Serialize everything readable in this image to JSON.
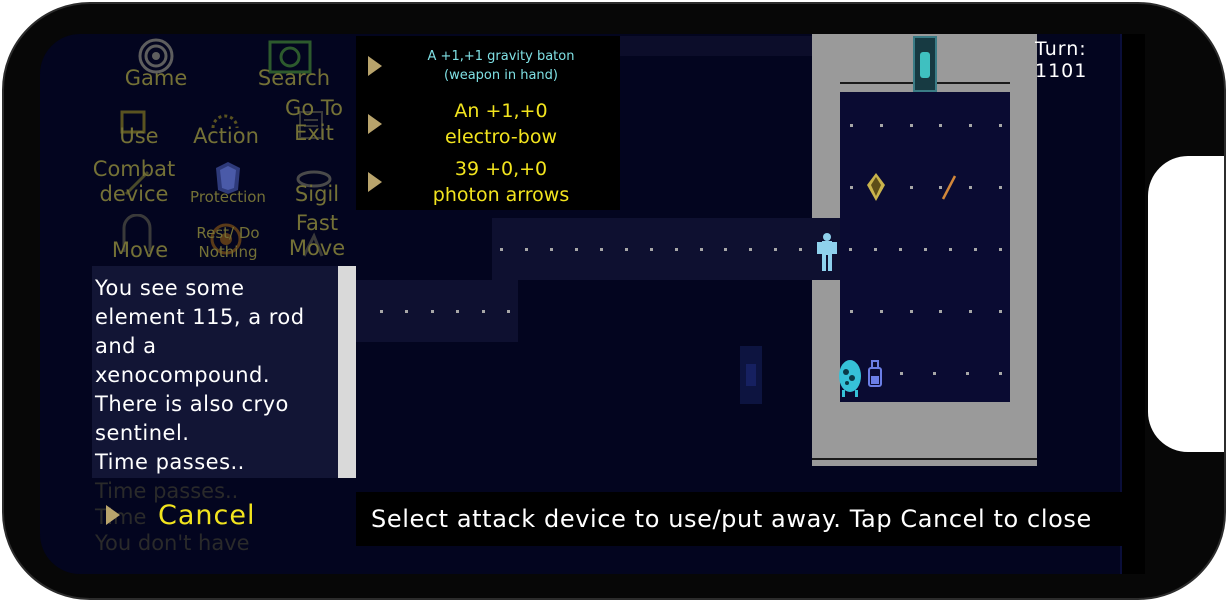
{
  "hud": {
    "turn": "Turn: 1101"
  },
  "commands": [
    {
      "id": "game",
      "label": "Game",
      "icon": "game-icon"
    },
    {
      "id": "search",
      "label": "Search",
      "icon": "search-icon"
    },
    {
      "id": "use",
      "label": "Use",
      "icon": "use-icon"
    },
    {
      "id": "action",
      "label": "Action",
      "icon": "action-icon"
    },
    {
      "id": "goto-exit",
      "label": "Go To\nExit",
      "icon": "exit-icon"
    },
    {
      "id": "combat-device",
      "label": "Combat\ndevice",
      "icon": "combat-icon"
    },
    {
      "id": "protection",
      "label": "Protection",
      "icon": "protection-icon"
    },
    {
      "id": "sigil",
      "label": "Sigil",
      "icon": "sigil-icon"
    },
    {
      "id": "move",
      "label": "Move",
      "icon": "move-icon"
    },
    {
      "id": "rest",
      "label": "Rest/ Do\nNothing",
      "icon": "rest-icon"
    },
    {
      "id": "fast-move",
      "label": "Fast\nMove",
      "icon": "fast-move-icon"
    }
  ],
  "log": {
    "lines": [
      "You see some",
      "element 115, a rod",
      "and a",
      "xenocompound.",
      "There is also cryo",
      "sentinel.",
      "Time passes.."
    ],
    "faded_lines": [
      "Time passes..",
      "Time",
      "You don't have"
    ]
  },
  "cancel": {
    "label": "Cancel"
  },
  "weapons": [
    {
      "line1": "A +1,+1 gravity baton",
      "line2": "(weapon in hand)",
      "color": "#7fe0e4",
      "size": "small"
    },
    {
      "line1": "An +1,+0",
      "line2": "electro-bow",
      "color": "#f2e41e",
      "size": "large"
    },
    {
      "line1": "39 +0,+0",
      "line2": "photon arrows",
      "color": "#f2e41e",
      "size": "large"
    }
  ],
  "hint": "Select attack device to use/put away. Tap Cancel to close",
  "colors": {
    "command_text": "#747136",
    "cancel_text": "#f2e41e",
    "menu_arrow": "#b9a46c",
    "wall": "#9a9a9a"
  }
}
